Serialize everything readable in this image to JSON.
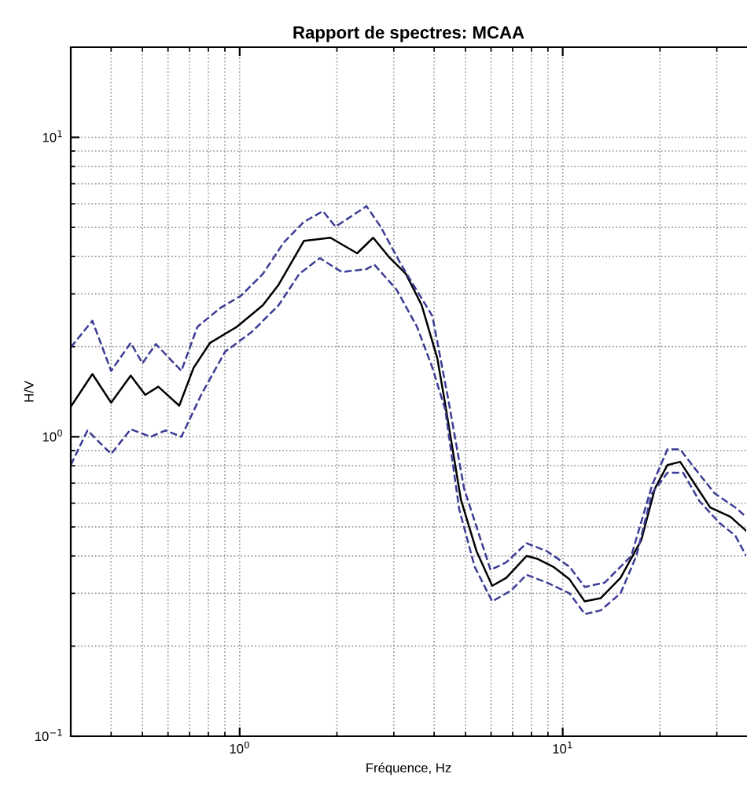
{
  "chart_data": {
    "type": "line",
    "title": "Rapport de spectres: MCAA",
    "xlabel": "Fréquence, Hz",
    "ylabel": "H/V",
    "log": "xy",
    "grid": true,
    "marker": "none",
    "xlim": [
      0.3,
      37
    ],
    "ylim": [
      0.1,
      20
    ],
    "xticks": [
      {
        "value": 1,
        "label": "10$^{0}$"
      },
      {
        "value": 10,
        "label": "10$^{1}$"
      }
    ],
    "yticks": [
      {
        "value": 0.1,
        "label": "10$^{−1}$"
      },
      {
        "value": 1,
        "label": "10$^{0}$"
      },
      {
        "value": 10,
        "label": "10$^{1}$"
      }
    ],
    "series": [
      {
        "color": "#000000",
        "line_style": "solid",
        "x": [
          0.3,
          0.35,
          0.4,
          0.46,
          0.51,
          0.56,
          0.65,
          0.72,
          0.81,
          0.98,
          1.18,
          1.32,
          1.58,
          1.91,
          2.31,
          2.59,
          2.92,
          3.27,
          3.66,
          4.09,
          4.28,
          4.84,
          5.41,
          6.05,
          6.69,
          7.73,
          8.36,
          9.35,
          10.5,
          11.7,
          13.1,
          15.1,
          17.5,
          19.3,
          21.1,
          23.1,
          25.6,
          28.6,
          33.1,
          37.0
        ],
        "values": [
          1.26,
          1.62,
          1.3,
          1.6,
          1.38,
          1.47,
          1.27,
          1.7,
          2.06,
          2.33,
          2.75,
          3.22,
          4.51,
          4.62,
          4.1,
          4.62,
          3.95,
          3.5,
          2.75,
          1.83,
          1.38,
          0.617,
          0.415,
          0.318,
          0.338,
          0.4,
          0.391,
          0.368,
          0.334,
          0.282,
          0.289,
          0.338,
          0.451,
          0.672,
          0.805,
          0.825,
          0.697,
          0.581,
          0.54,
          0.485
        ]
      },
      {
        "color": "#3c3c96",
        "line_style": "dashed",
        "x": [
          0.3,
          0.35,
          0.4,
          0.46,
          0.5,
          0.55,
          0.66,
          0.74,
          0.87,
          1.01,
          1.18,
          1.37,
          1.58,
          1.81,
          1.98,
          2.47,
          2.73,
          3.16,
          3.95,
          4.42,
          4.95,
          5.98,
          6.69,
          7.73,
          8.93,
          10.5,
          11.7,
          13.5,
          16.3,
          18.9,
          21.1,
          23.1,
          25.6,
          29.5,
          34.2,
          37.0
        ],
        "values": [
          1.99,
          2.44,
          1.66,
          2.06,
          1.76,
          2.04,
          1.66,
          2.33,
          2.69,
          2.96,
          3.5,
          4.46,
          5.22,
          5.67,
          5.03,
          5.89,
          5.03,
          3.76,
          2.53,
          1.34,
          0.672,
          0.359,
          0.381,
          0.441,
          0.415,
          0.368,
          0.315,
          0.326,
          0.4,
          0.688,
          0.908,
          0.908,
          0.786,
          0.648,
          0.581,
          0.54
        ]
      },
      {
        "color": "#3c3c96",
        "line_style": "dashed",
        "x": [
          0.3,
          0.338,
          0.4,
          0.46,
          0.53,
          0.59,
          0.66,
          0.76,
          0.9,
          1.09,
          1.32,
          1.53,
          1.77,
          2.07,
          2.47,
          2.61,
          3.06,
          3.54,
          3.95,
          4.33,
          4.78,
          5.34,
          6.05,
          6.93,
          7.73,
          8.93,
          10.5,
          11.7,
          13.1,
          15.1,
          16.9,
          18.9,
          21.1,
          23.6,
          26.5,
          30.6,
          34.2,
          37.0
        ],
        "values": [
          0.805,
          1.05,
          0.876,
          1.06,
          1.0,
          1.05,
          1.0,
          1.38,
          1.92,
          2.24,
          2.75,
          3.5,
          3.95,
          3.55,
          3.63,
          3.76,
          3.1,
          2.33,
          1.7,
          1.23,
          0.574,
          0.368,
          0.282,
          0.307,
          0.346,
          0.326,
          0.3,
          0.256,
          0.263,
          0.3,
          0.4,
          0.648,
          0.758,
          0.758,
          0.61,
          0.515,
          0.468,
          0.4
        ]
      }
    ]
  }
}
